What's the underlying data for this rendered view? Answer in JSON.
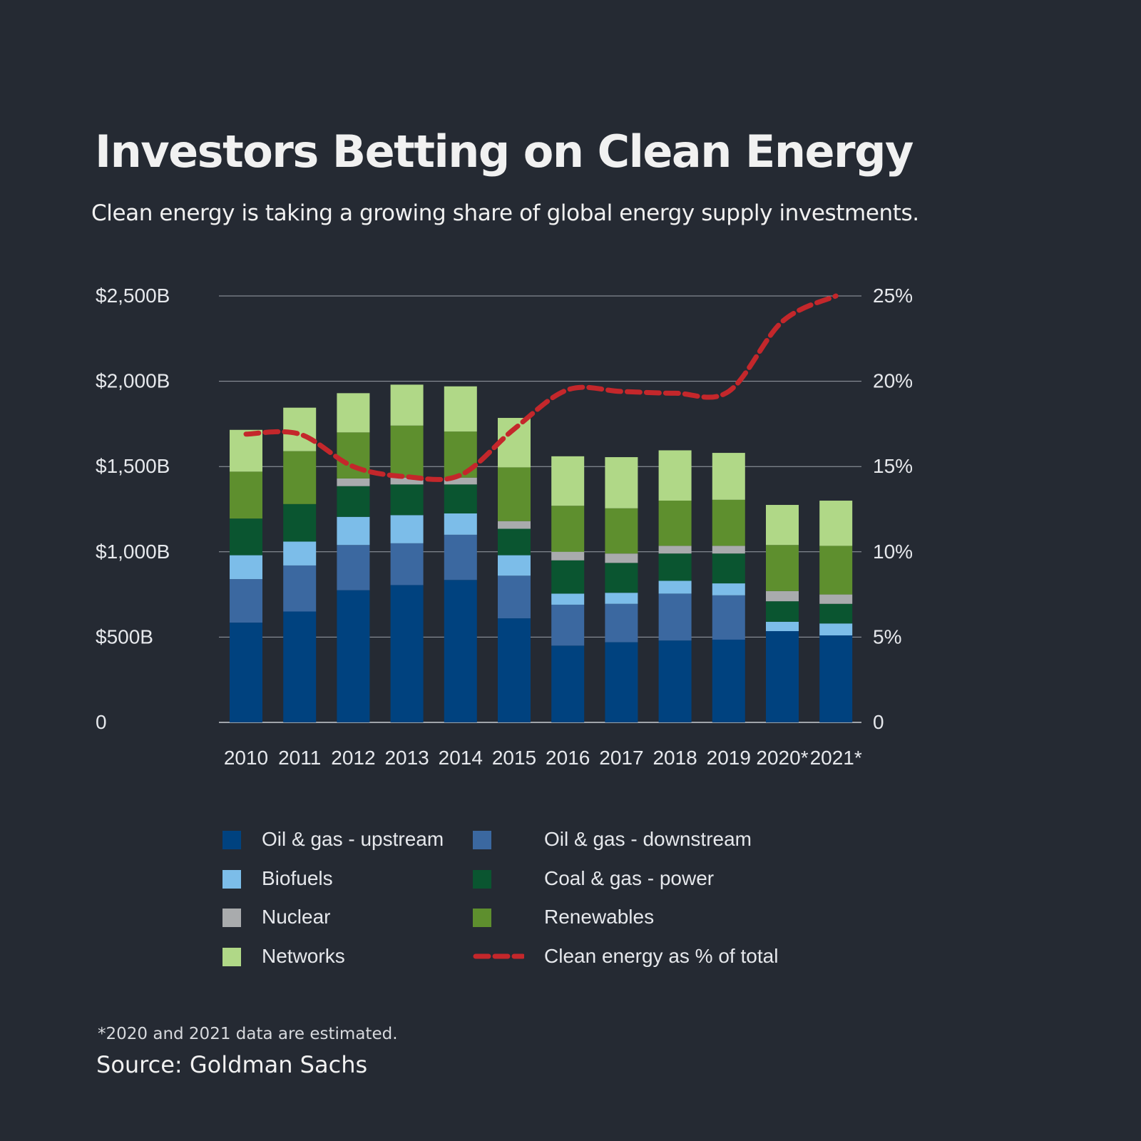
{
  "title": "Investors Betting on Clean Energy",
  "subtitle": "Clean energy is taking a growing share of global energy supply investments.",
  "footnote": "*2020 and 2021 data are estimated.",
  "source": "Source: Goldman Sachs",
  "chart_data": {
    "type": "bar",
    "stacked": true,
    "categories": [
      "2010",
      "2011",
      "2012",
      "2013",
      "2014",
      "2015",
      "2016",
      "2017",
      "2018",
      "2019",
      "2020*",
      "2021*"
    ],
    "y_left": {
      "ticks": [
        0,
        500,
        1000,
        1500,
        2000,
        2500
      ],
      "tick_labels": [
        "0",
        "$500B",
        "$1,000B",
        "$1,500B",
        "$2,000B",
        "$2,500B"
      ],
      "ylim": [
        0,
        2500
      ]
    },
    "y_right": {
      "ticks": [
        0,
        5,
        10,
        15,
        20,
        25
      ],
      "tick_labels": [
        "0",
        "5%",
        "10%",
        "15%",
        "20%",
        "25%"
      ],
      "ylim": [
        0,
        25
      ]
    },
    "grid": true,
    "legend_position": "bottom",
    "series": [
      {
        "name": "Oil & gas - upstream",
        "color": "#00427f",
        "values": [
          585,
          650,
          775,
          805,
          835,
          610,
          450,
          470,
          480,
          485,
          535,
          510
        ]
      },
      {
        "name": "Oil & gas - downstream",
        "color": "#3b68a0",
        "values": [
          255,
          270,
          265,
          245,
          265,
          250,
          240,
          225,
          275,
          260,
          0,
          0
        ]
      },
      {
        "name": "Biofuels",
        "color": "#7cbde9",
        "values": [
          140,
          140,
          165,
          165,
          125,
          120,
          65,
          65,
          75,
          70,
          55,
          70
        ]
      },
      {
        "name": "Coal & gas - power",
        "color": "#0a5530",
        "values": [
          215,
          220,
          180,
          180,
          170,
          155,
          195,
          175,
          160,
          175,
          120,
          115
        ]
      },
      {
        "name": "Nuclear",
        "color": "#a9abad",
        "values": [
          0,
          0,
          45,
          40,
          40,
          45,
          50,
          55,
          45,
          45,
          60,
          55
        ]
      },
      {
        "name": "Renewables",
        "color": "#5e8f2e",
        "values": [
          275,
          310,
          270,
          305,
          270,
          315,
          270,
          265,
          265,
          270,
          270,
          285
        ]
      },
      {
        "name": "Networks",
        "color": "#b0d887",
        "values": [
          245,
          255,
          230,
          240,
          265,
          290,
          290,
          300,
          295,
          275,
          235,
          265
        ]
      }
    ],
    "line_series": {
      "name": "Clean energy as % of total",
      "color": "#c4272b",
      "axis": "right",
      "values": [
        16.9,
        16.9,
        15.0,
        14.4,
        14.5,
        17.2,
        19.5,
        19.4,
        19.3,
        19.4,
        23.5,
        25.0
      ]
    }
  }
}
